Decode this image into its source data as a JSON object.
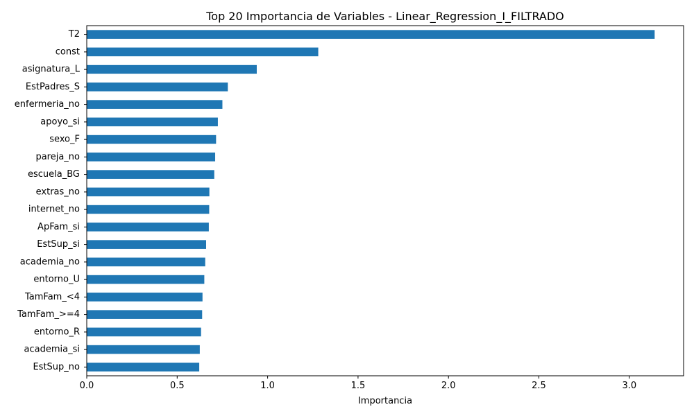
{
  "chart_data": {
    "type": "bar",
    "orientation": "horizontal",
    "title": "Top 20 Importancia de Variables - Linear_Regression_I_FILTRADO",
    "xlabel": "Importancia",
    "ylabel": "",
    "xlim": [
      0,
      3.3
    ],
    "xticks": [
      "0.0",
      "0.5",
      "1.0",
      "1.5",
      "2.0",
      "2.5",
      "3.0"
    ],
    "grid": false,
    "color": "#1f77b4",
    "categories": [
      "T2",
      "const",
      "asignatura_L",
      "EstPadres_S",
      "enfermeria_no",
      "apoyo_si",
      "sexo_F",
      "pareja_no",
      "escuela_BG",
      "extras_no",
      "internet_no",
      "ApFam_si",
      "EstSup_si",
      "academia_no",
      "entorno_U",
      "TamFam_<4",
      "TamFam_>=4",
      "entorno_R",
      "academia_si",
      "EstSup_no"
    ],
    "values": [
      3.14,
      1.28,
      0.94,
      0.78,
      0.75,
      0.725,
      0.715,
      0.71,
      0.705,
      0.678,
      0.677,
      0.675,
      0.66,
      0.655,
      0.65,
      0.64,
      0.638,
      0.632,
      0.625,
      0.622
    ]
  }
}
